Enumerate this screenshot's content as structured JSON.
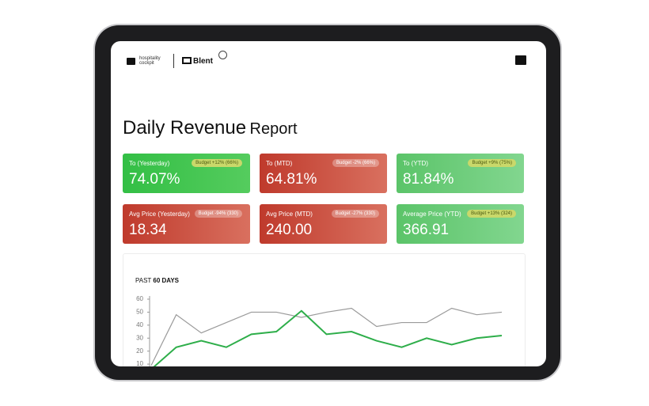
{
  "header": {
    "brand": "hospitality cockpit",
    "partner": "Blent"
  },
  "title": {
    "main": "Daily Revenue",
    "sub": "Report"
  },
  "cards": [
    {
      "label": "To (Yesterday)",
      "badge": "Budget +12% (66%)",
      "value": "74.07%"
    },
    {
      "label": "To (MTD)",
      "badge": "Budget -2% (66%)",
      "value": "64.81%"
    },
    {
      "label": "To (YTD)",
      "badge": "Budget +9% (75%)",
      "value": "81.84%"
    },
    {
      "label": "Avg Price (Yesterday)",
      "badge": "Budget -94% (330)",
      "value": "18.34"
    },
    {
      "label": "Avg Price (MTD)",
      "badge": "Budget -27% (330)",
      "value": "240.00"
    },
    {
      "label": "Average Price (YTD)",
      "badge": "Budget +13% (324)",
      "value": "366.91"
    }
  ],
  "chart_data": {
    "type": "line",
    "title": "PAST",
    "title_bold": "60 DAYS",
    "categories": [
      null,
      null,
      null,
      null,
      null,
      null,
      null,
      null,
      null,
      null,
      null,
      null,
      null,
      null,
      null
    ],
    "series": [
      {
        "color": "#9a9a9a",
        "values": [
          9,
          48,
          34,
          42,
          50,
          50,
          46,
          50,
          53,
          39,
          42,
          42,
          53,
          48,
          50
        ]
      },
      {
        "color": "#2eae4a",
        "values": [
          6,
          23,
          28,
          23,
          33,
          35,
          51,
          33,
          35,
          28,
          23,
          30,
          25,
          30,
          32
        ]
      }
    ],
    "ylim": [
      0,
      60
    ],
    "yticks": [
      10,
      20,
      30,
      40,
      50,
      60
    ],
    "grid": false
  }
}
